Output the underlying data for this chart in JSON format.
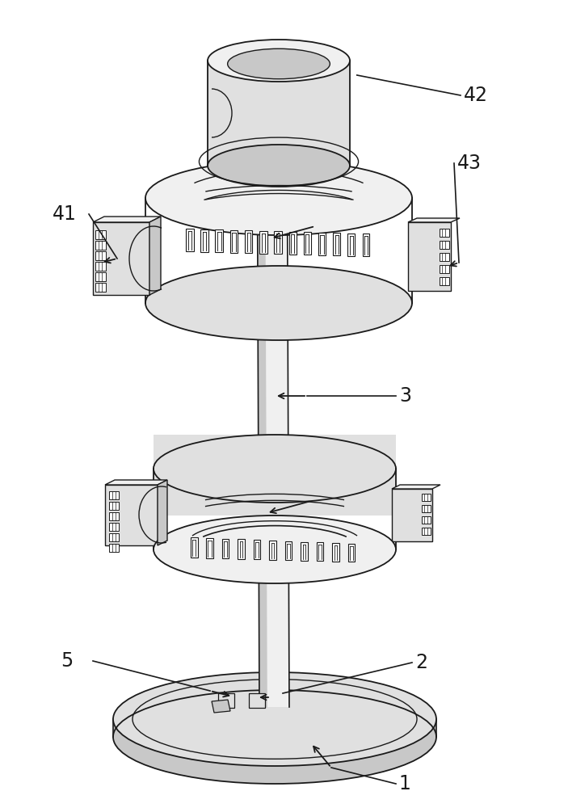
{
  "bg_color": "#ffffff",
  "lc": "#1a1a1a",
  "fill_white": "#ffffff",
  "fill_vlight": "#f0f0f0",
  "fill_light": "#e0e0e0",
  "fill_mid": "#c8c8c8",
  "fill_dark": "#a0a0a0",
  "fill_black": "#2a2a2a",
  "figsize": [
    7.03,
    10.0
  ],
  "dpi": 100
}
